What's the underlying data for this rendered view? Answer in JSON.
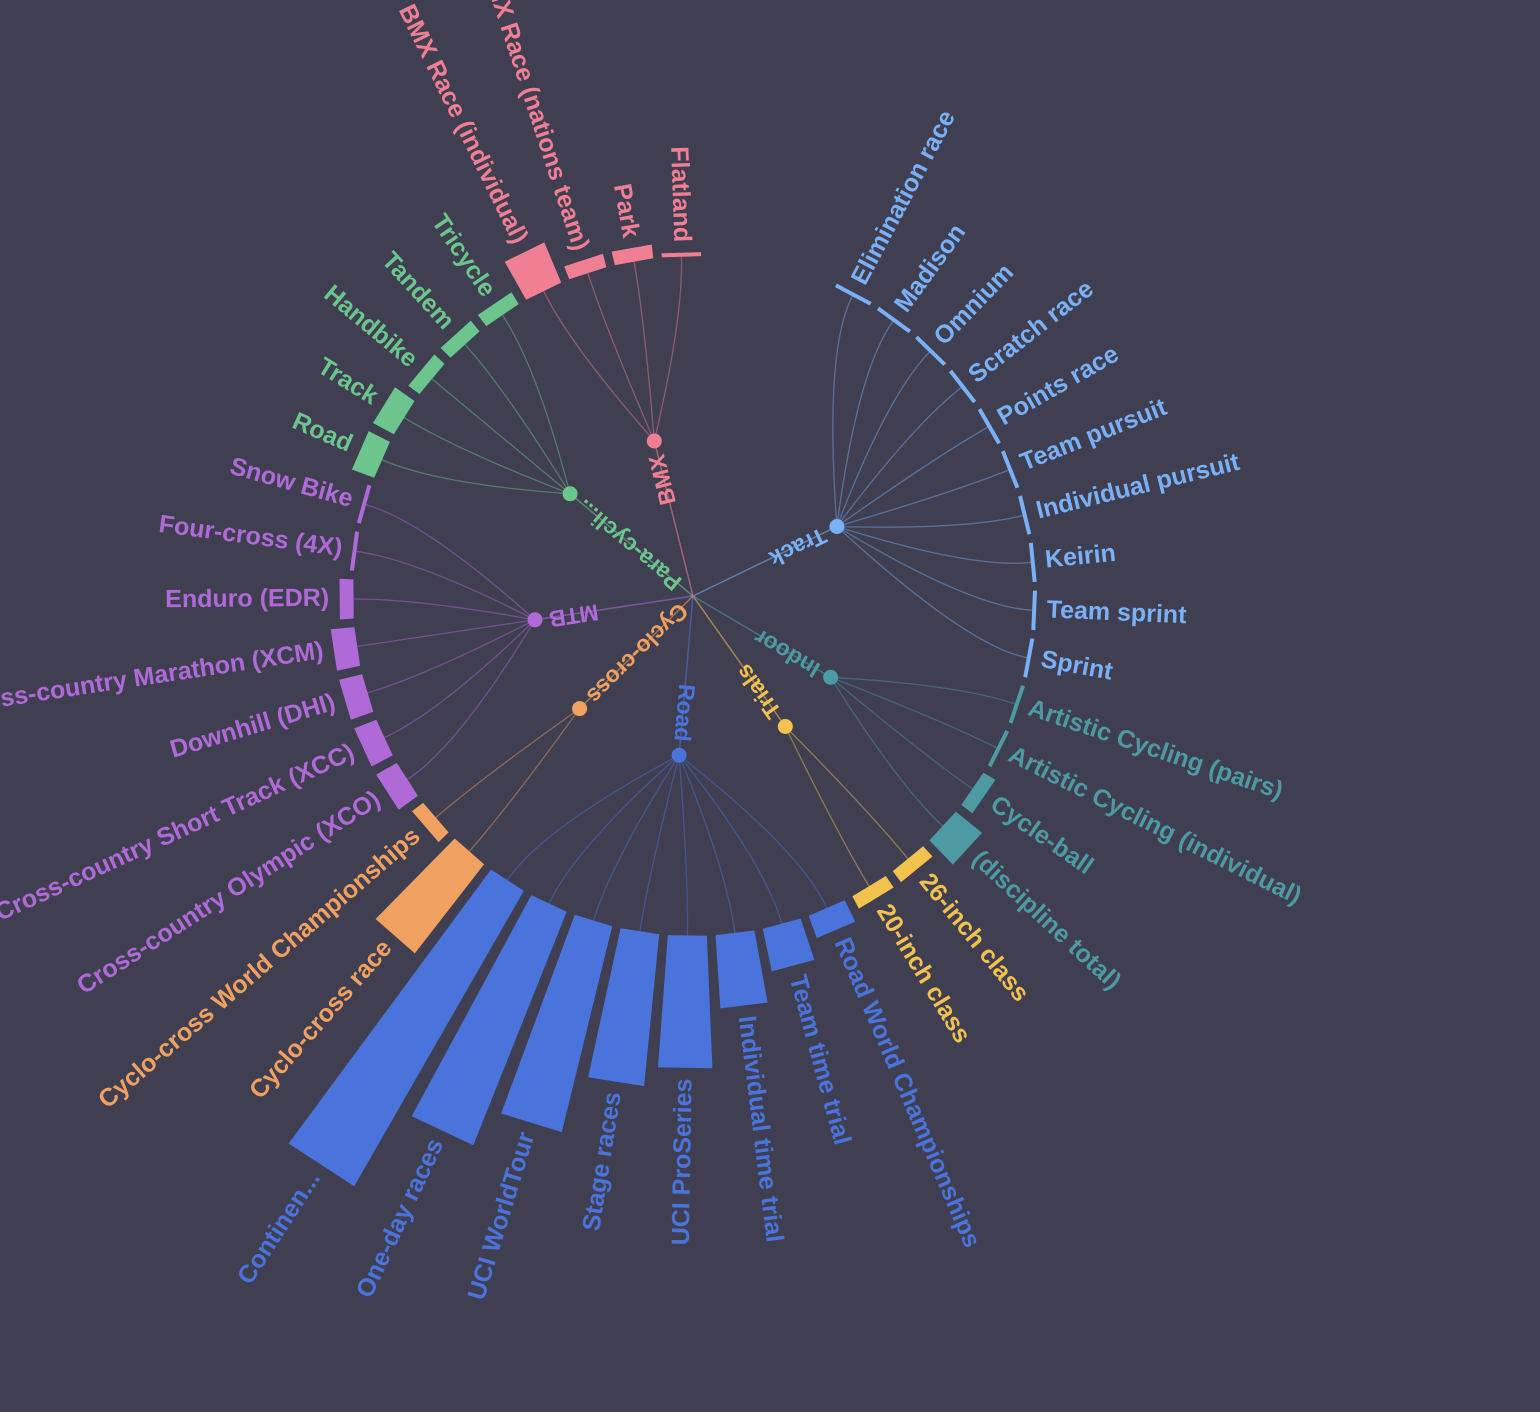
{
  "colors": {
    "background": "#3f3f51",
    "Track": "#7ab0f5",
    "Indoor": "#4e9aa2",
    "Trials": "#f2c14e",
    "Road": "#4a74dc",
    "Cyclo-cross": "#f0a060",
    "MTB": "#b06ad8",
    "Para-cycling": "#6cc58c",
    "BMX": "#f07f94"
  },
  "chart_data": {
    "type": "radial-tree-bar",
    "title": "",
    "value_unit": "relative size (bar length)",
    "groups": [
      {
        "name": "Track",
        "label": "Track",
        "color": "#7ab0f5",
        "leaves": [
          {
            "name": "Elimination race",
            "label": "Elimination race",
            "value": 0
          },
          {
            "name": "Madison",
            "label": "Madison",
            "value": 0
          },
          {
            "name": "Omnium",
            "label": "Omnium",
            "value": 0
          },
          {
            "name": "Scratch race",
            "label": "Scratch race",
            "value": 0
          },
          {
            "name": "Points race",
            "label": "Points race",
            "value": 0
          },
          {
            "name": "Team pursuit",
            "label": "Team pursuit",
            "value": 0
          },
          {
            "name": "Individual pursuit",
            "label": "Individual pursuit",
            "value": 0
          },
          {
            "name": "Keirin",
            "label": "Keirin",
            "value": 0
          },
          {
            "name": "Team sprint",
            "label": "Team sprint",
            "value": 0
          },
          {
            "name": "Sprint",
            "label": "Sprint",
            "value": 0
          }
        ]
      },
      {
        "name": "Indoor",
        "label": "Indoor",
        "color": "#4e9aa2",
        "leaves": [
          {
            "name": "Artistic Cycling (pairs)",
            "label": "Artistic Cycling (pairs)",
            "value": 0
          },
          {
            "name": "Artistic Cycling (individual)",
            "label": "Artistic Cycling (individual)",
            "value": 0
          },
          {
            "name": "Cycle-ball",
            "label": "Cycle-ball",
            "value": 1
          },
          {
            "name": "(discipline total)",
            "label": "(discipline total)",
            "value": 3
          }
        ]
      },
      {
        "name": "Trials",
        "label": "Trials",
        "color": "#f2c14e",
        "leaves": [
          {
            "name": "26-inch class",
            "label": "26-inch class",
            "value": 1
          },
          {
            "name": "20-inch class",
            "label": "20-inch class",
            "value": 1
          }
        ]
      },
      {
        "name": "Road",
        "label": "Road",
        "color": "#4a74dc",
        "leaves": [
          {
            "name": "Road World Championships",
            "label": "Road World Championships",
            "value": 2
          },
          {
            "name": "Team time trial",
            "label": "Team time trial",
            "value": 4
          },
          {
            "name": "Individual time trial",
            "label": "Individual time trial",
            "value": 7
          },
          {
            "name": "UCI ProSeries",
            "label": "UCI ProSeries",
            "value": 13
          },
          {
            "name": "Stage races",
            "label": "Stage races",
            "value": 15
          },
          {
            "name": "UCI WorldTour",
            "label": "UCI WorldTour",
            "value": 21
          },
          {
            "name": "One-day races",
            "label": "One-day races",
            "value": 25
          },
          {
            "name": "Continental",
            "label": "Continen...",
            "value": 34
          }
        ]
      },
      {
        "name": "Cyclo-cross",
        "label": "Cyclo-cross",
        "color": "#f0a060",
        "leaves": [
          {
            "name": "Cyclo-cross race",
            "label": "Cyclo-cross race",
            "value": 11
          },
          {
            "name": "Cyclo-cross World Championships",
            "label": "Cyclo-cross World Championships",
            "value": 1
          }
        ]
      },
      {
        "name": "MTB",
        "label": "MTB",
        "color": "#b06ad8",
        "leaves": [
          {
            "name": "Cross-country Olympic (XCO)",
            "label": "Cross-country Olympic (XCO)",
            "value": 2
          },
          {
            "name": "Cross-country Short Track (XCC)",
            "label": "Cross-country Short Track (XCC)",
            "value": 2
          },
          {
            "name": "Downhill (DHI)",
            "label": "Downhill (DHI)",
            "value": 2
          },
          {
            "name": "Cross-country Marathon (XCM)",
            "label": "Cross-country Marathon (XCM)",
            "value": 2
          },
          {
            "name": "Enduro (EDR)",
            "label": "Enduro (EDR)",
            "value": 1
          },
          {
            "name": "Four-cross (4X)",
            "label": "Four-cross (4X)",
            "value": 0
          },
          {
            "name": "Snow Bike",
            "label": "Snow Bike",
            "value": 0
          }
        ]
      },
      {
        "name": "Para-cycling",
        "label": "Para-cycli...",
        "color": "#6cc58c",
        "leaves": [
          {
            "name": "Road",
            "label": "Road",
            "value": 2
          },
          {
            "name": "Track",
            "label": "Track",
            "value": 2
          },
          {
            "name": "Handbike",
            "label": "Handbike",
            "value": 1
          },
          {
            "name": "Tandem",
            "label": "Tandem",
            "value": 1
          },
          {
            "name": "Tricycle",
            "label": "Tricycle",
            "value": 1
          }
        ]
      },
      {
        "name": "BMX",
        "label": "BMX",
        "color": "#f07f94",
        "leaves": [
          {
            "name": "BMX Race (individual)",
            "label": "BMX Race (individual)",
            "value": 4
          },
          {
            "name": "BMX Race (nations team)",
            "label": "BMX Race (nations team)",
            "value": 1
          },
          {
            "name": "Park",
            "label": "Park",
            "value": 1
          },
          {
            "name": "Flatland",
            "label": "Flatland",
            "value": 0
          }
        ]
      }
    ]
  }
}
